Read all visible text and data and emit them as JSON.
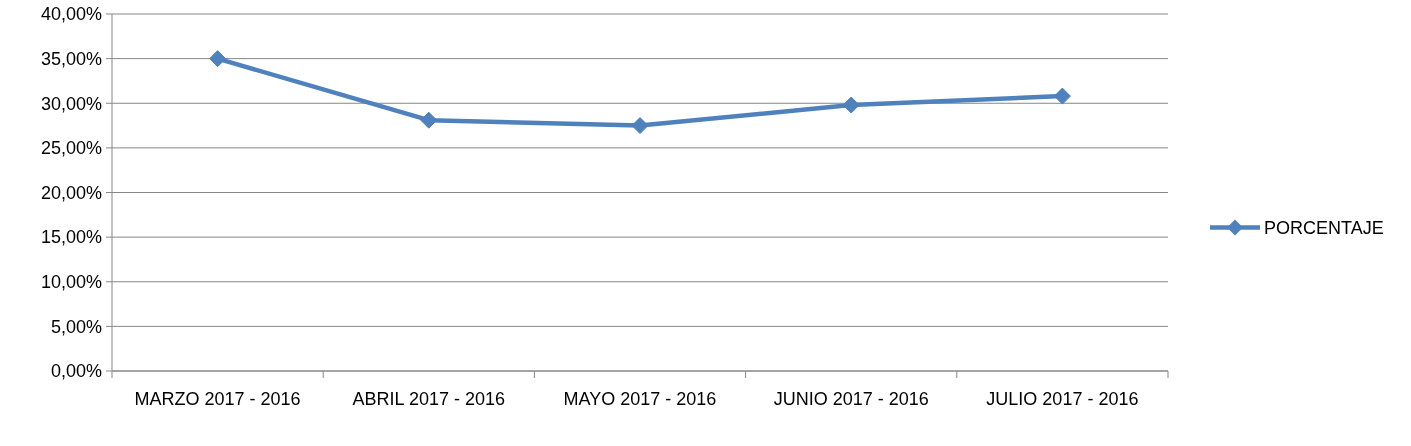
{
  "chart_data": {
    "type": "line",
    "categories": [
      "MARZO 2017 - 2016",
      "ABRIL 2017 - 2016",
      "MAYO 2017 - 2016",
      "JUNIO 2017 - 2016",
      "JULIO 2017 - 2016"
    ],
    "series": [
      {
        "name": "PORCENTAJE",
        "color": "#4f81bd",
        "values": [
          35,
          28.1,
          27.5,
          29.8,
          30.8
        ]
      }
    ],
    "ylim": [
      0,
      40
    ],
    "yticks": [
      {
        "value": 0,
        "label": "0,00%"
      },
      {
        "value": 5,
        "label": "5,00%"
      },
      {
        "value": 10,
        "label": "10,00%"
      },
      {
        "value": 15,
        "label": "15,00%"
      },
      {
        "value": 20,
        "label": "20,00%"
      },
      {
        "value": 25,
        "label": "25,00%"
      },
      {
        "value": 30,
        "label": "30,00%"
      },
      {
        "value": 35,
        "label": "35,00%"
      },
      {
        "value": 40,
        "label": "40,00%"
      }
    ],
    "grid": "y",
    "legend": "right",
    "marker": "diamond",
    "line_style": "solid"
  }
}
